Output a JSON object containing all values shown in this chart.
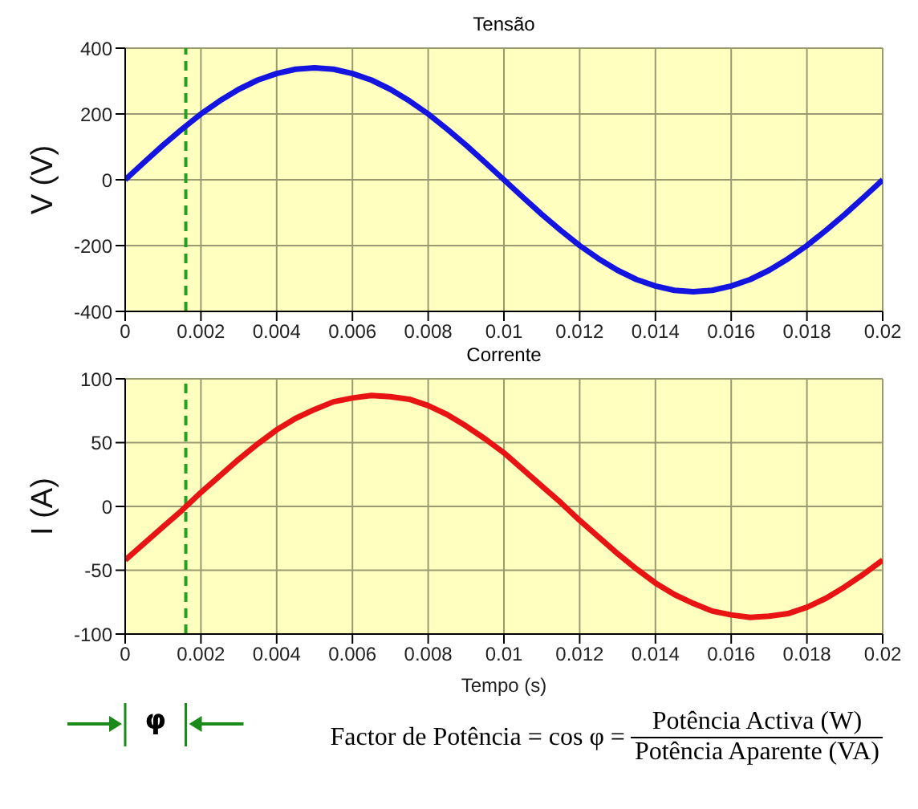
{
  "chart_data": [
    {
      "type": "line",
      "title": "Tensão",
      "ylabel": "V (V)",
      "x": [
        0,
        0.0005,
        0.001,
        0.0015,
        0.002,
        0.0025,
        0.003,
        0.0035,
        0.004,
        0.0045,
        0.005,
        0.0055,
        0.006,
        0.0065,
        0.007,
        0.0075,
        0.008,
        0.0085,
        0.009,
        0.0095,
        0.01,
        0.0105,
        0.011,
        0.0115,
        0.012,
        0.0125,
        0.013,
        0.0135,
        0.014,
        0.0145,
        0.015,
        0.0155,
        0.016,
        0.0165,
        0.017,
        0.0175,
        0.018,
        0.0185,
        0.019,
        0.0195,
        0.02
      ],
      "series": [
        {
          "color": "#1414e0",
          "values": [
            0,
            53,
            105,
            154,
            200,
            240,
            275,
            303,
            323,
            336,
            340,
            336,
            323,
            303,
            275,
            240,
            200,
            154,
            105,
            53,
            0,
            -53,
            -105,
            -154,
            -200,
            -240,
            -275,
            -303,
            -323,
            -336,
            -340,
            -336,
            -323,
            -303,
            -275,
            -240,
            -200,
            -154,
            -105,
            -53,
            0
          ]
        }
      ],
      "xlim": [
        0,
        0.02
      ],
      "xticks": [
        0,
        0.002,
        0.004,
        0.006,
        0.008,
        0.01,
        0.012,
        0.014,
        0.016,
        0.018,
        0.02
      ],
      "ylim": [
        -400,
        400
      ],
      "yticks": [
        -400,
        -200,
        0,
        200,
        400
      ],
      "grid": true,
      "line_style": "solid",
      "ref_lines": [
        {
          "axis": "x",
          "value": 0.0016,
          "color": "#22a022",
          "line_style": "dashed"
        }
      ]
    },
    {
      "type": "line",
      "title": "Corrente",
      "xlabel": "Tempo (s)",
      "ylabel": "I (A)",
      "x": [
        0,
        0.0005,
        0.001,
        0.0015,
        0.002,
        0.0025,
        0.003,
        0.0035,
        0.004,
        0.0045,
        0.005,
        0.0055,
        0.006,
        0.0065,
        0.007,
        0.0075,
        0.008,
        0.0085,
        0.009,
        0.0095,
        0.01,
        0.0105,
        0.011,
        0.0115,
        0.012,
        0.0125,
        0.013,
        0.0135,
        0.014,
        0.0145,
        0.015,
        0.0155,
        0.016,
        0.0165,
        0.017,
        0.0175,
        0.018,
        0.0185,
        0.019,
        0.0195,
        0.02
      ],
      "series": [
        {
          "color": "#e81414",
          "values": [
            -42,
            -29,
            -16,
            -3,
            11,
            24,
            37,
            49,
            60,
            69,
            76,
            82,
            85,
            87,
            86,
            84,
            79,
            72,
            63,
            53,
            42,
            29,
            16,
            3,
            -11,
            -24,
            -37,
            -49,
            -60,
            -69,
            -76,
            -82,
            -85,
            -87,
            -86,
            -84,
            -79,
            -72,
            -63,
            -53,
            -42
          ]
        }
      ],
      "xlim": [
        0,
        0.02
      ],
      "xticks": [
        0,
        0.002,
        0.004,
        0.006,
        0.008,
        0.01,
        0.012,
        0.014,
        0.016,
        0.018,
        0.02
      ],
      "ylim": [
        -100,
        100
      ],
      "yticks": [
        -100,
        -50,
        0,
        50,
        100
      ],
      "grid": true,
      "line_style": "solid",
      "ref_lines": [
        {
          "axis": "x",
          "value": 0.0016,
          "color": "#22a022",
          "line_style": "dashed"
        }
      ],
      "annotations": [
        "φ",
        "Factor de Potência = cos φ =",
        "Potência Activa (W)",
        "Potência Aparente (VA)"
      ]
    }
  ]
}
